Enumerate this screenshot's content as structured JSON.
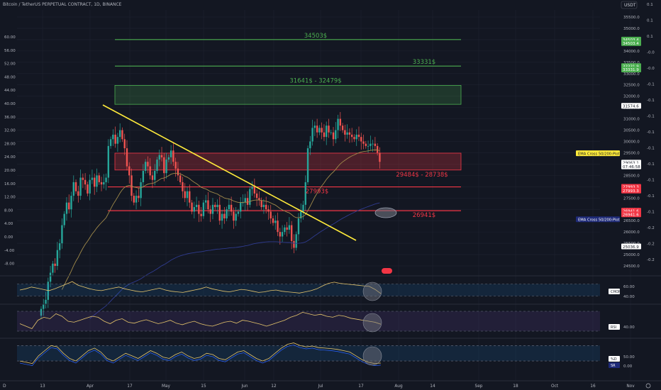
{
  "title": "Bitcoin / TetherUS PERPETUAL CONTRACT, 1D, BINANCE",
  "currency": "USDT",
  "colors": {
    "background": "#131722",
    "grid": "#1f2330",
    "bull": "#26a69a",
    "bear": "#ef5350",
    "green_level": "#4caf50",
    "red_level": "#f23645",
    "trendline": "#ffeb3b",
    "ema50": "#a08a4a",
    "ema200": "#2f3b8f"
  },
  "chart_data": [
    {
      "type": "candlestick",
      "name": "price",
      "title": "Bitcoin / TetherUS PERPETUAL CONTRACT, 1D, BINANCE",
      "price_axis": {
        "min": 24500,
        "max": 35500,
        "ticks": [
          35500,
          35000,
          34500,
          34000,
          33500,
          33000,
          32500,
          32000,
          31500,
          31000,
          30500,
          30000,
          29500,
          29000,
          28500,
          28000,
          27500,
          27000,
          26500,
          26000,
          25500,
          25000,
          24500
        ]
      },
      "left_axis": {
        "ticks": [
          "60.00",
          "56.00",
          "52.00",
          "48.00",
          "44.00",
          "40.00",
          "36.00",
          "32.00",
          "28.00",
          "24.00",
          "20.00",
          "16.00",
          "12.00",
          "8.00",
          "4.00",
          "0.00",
          "-4.00",
          "-8.00"
        ]
      },
      "right_osc_axis": {
        "ticks": [
          "0.1",
          "0.1",
          "0.1",
          "-0.0",
          "-0.0",
          "-0.1",
          "-0.1",
          "-0.1",
          "-0.1",
          "-0.1",
          "-0.1",
          "-0.1",
          "-0.1",
          "-0.1",
          "-0.2",
          "-0.2",
          "-0.2"
        ]
      },
      "x_axis": {
        "labels": [
          "13",
          "Apr",
          "17",
          "May",
          "15",
          "Jun",
          "12",
          "Jul",
          "17",
          "Aug",
          "14",
          "Sep",
          "18",
          "Oct",
          "16",
          "Nov"
        ]
      },
      "series_close": [
        22600,
        22800,
        23000,
        23800,
        24200,
        24600,
        24500,
        25200,
        25500,
        26300,
        26800,
        27300,
        27000,
        27600,
        28200,
        27800,
        27600,
        28400,
        28300,
        28100,
        27700,
        28300,
        28400,
        28000,
        28500,
        28200,
        28100,
        28200,
        28400,
        29800,
        30100,
        30300,
        29900,
        30200,
        30500,
        30100,
        29700,
        28900,
        28500,
        27600,
        27300,
        27600,
        27500,
        28200,
        28700,
        29100,
        28900,
        28500,
        28300,
        28700,
        29200,
        29400,
        29300,
        28600,
        29200,
        29300,
        29600,
        29100,
        28800,
        28500,
        28200,
        27800,
        27500,
        27800,
        27300,
        26900,
        27100,
        27200,
        26800,
        26700,
        27300,
        27400,
        27000,
        26800,
        27200,
        27100,
        27200,
        26500,
        26800,
        26600,
        27000,
        27200,
        26900,
        26500,
        26800,
        26900,
        27300,
        27300,
        27500,
        27200,
        27900,
        28000,
        27700,
        27500,
        27400,
        27100,
        27200,
        27000,
        26900,
        26600,
        26400,
        26500,
        26000,
        25800,
        26000,
        26200,
        26100,
        26300,
        25600,
        25300,
        25900,
        26600,
        26900,
        27200,
        28200,
        29700,
        30000,
        30600,
        30700,
        30400,
        30600,
        30400,
        30200,
        30700,
        30400,
        30400,
        30100,
        30500,
        31000,
        30700,
        30500,
        30300,
        30400,
        30300,
        30200,
        30100,
        30300,
        30200,
        30000,
        29900,
        29800,
        29800,
        29900,
        29900,
        29800,
        29500,
        29100
      ],
      "levels": [
        {
          "label": "34503$",
          "price": 34503,
          "color": "green"
        },
        {
          "label": "33331$",
          "price": 33331,
          "color": "green"
        },
        {
          "label": "31641$ - 32479$",
          "low": 31641,
          "high": 32479,
          "color": "green",
          "kind": "zone"
        },
        {
          "label": "29484$ - 28738$",
          "low": 28738,
          "high": 29484,
          "color": "red",
          "kind": "zone"
        },
        {
          "label": "27993$",
          "price": 27993,
          "color": "red"
        },
        {
          "label": "26941$",
          "price": 26941,
          "color": "red"
        }
      ],
      "right_tags": [
        {
          "label": "34503.4",
          "price": 34503,
          "bg": "#4caf50"
        },
        {
          "label": "34503.4",
          "price": 34350,
          "bg": "#4caf50"
        },
        {
          "label": "33331.9",
          "price": 33331,
          "bg": "#4caf50"
        },
        {
          "label": "33331.9",
          "price": 33180,
          "bg": "#4caf50"
        },
        {
          "label": "31574.6",
          "price": 31574,
          "bg": "#ffffff"
        },
        {
          "label": "29063.1",
          "price": 29063,
          "bg": "#ffffff"
        },
        {
          "label": "07:46:58",
          "price": 28900,
          "bg": "#ffffff"
        },
        {
          "label": "27993.3",
          "price": 27993,
          "bg": "#f23645"
        },
        {
          "label": "27993.3",
          "price": 27830,
          "bg": "#f23645"
        },
        {
          "label": "26941.6",
          "price": 26941,
          "bg": "#f23645"
        },
        {
          "label": "26941.6",
          "price": 26780,
          "bg": "#f23645"
        },
        {
          "label": "25036.9",
          "price": 25360,
          "bg": "#ffffff"
        }
      ],
      "indicator_tags": [
        {
          "label": "EMA Cross 50/200:Plot",
          "price": 29480,
          "style": "yellow"
        },
        {
          "label": "EMA Cross 50/200:Plot",
          "price": 26560,
          "style": "blue"
        }
      ]
    },
    {
      "type": "line",
      "name": "CHOP",
      "axis_ticks": [
        "60.00",
        "40.00"
      ],
      "ylim": [
        30,
        70
      ],
      "values": [
        50,
        52,
        55,
        53,
        51,
        49,
        52,
        56,
        60,
        64,
        58,
        55,
        52,
        50,
        49,
        51,
        53,
        55,
        52,
        50,
        48,
        47,
        49,
        51,
        53,
        50,
        48,
        47,
        46,
        48,
        50,
        52,
        55,
        52,
        50,
        48,
        47,
        49,
        51,
        50,
        48,
        46,
        47,
        49,
        50,
        48,
        47,
        46,
        45,
        47,
        49,
        52,
        57,
        61,
        63,
        61,
        60,
        59,
        58,
        57,
        56,
        51,
        44
      ]
    },
    {
      "type": "line",
      "name": "RSI",
      "axis_ticks": [
        "40.00"
      ],
      "ylim": [
        20,
        80
      ],
      "values": [
        45,
        40,
        35,
        52,
        58,
        55,
        65,
        60,
        50,
        48,
        52,
        56,
        60,
        58,
        50,
        45,
        52,
        55,
        48,
        46,
        50,
        53,
        49,
        45,
        48,
        52,
        46,
        43,
        47,
        50,
        45,
        42,
        40,
        44,
        48,
        50,
        46,
        52,
        50,
        47,
        44,
        40,
        44,
        48,
        52,
        58,
        62,
        68,
        65,
        62,
        64,
        60,
        58,
        62,
        60,
        56,
        54,
        52,
        50,
        48,
        44
      ]
    },
    {
      "type": "line",
      "name": "%D / SR",
      "axis_ticks": [
        "50.00",
        "0.00"
      ],
      "ylim": [
        -10,
        100
      ],
      "series": [
        {
          "name": "%D",
          "values": [
            20,
            15,
            10,
            40,
            60,
            80,
            75,
            50,
            30,
            20,
            40,
            60,
            70,
            55,
            30,
            20,
            35,
            50,
            40,
            30,
            45,
            60,
            50,
            35,
            30,
            45,
            55,
            40,
            30,
            35,
            50,
            45,
            30,
            25,
            40,
            55,
            60,
            45,
            30,
            20,
            30,
            50,
            70,
            85,
            90,
            80,
            75,
            78,
            72,
            70,
            68,
            65,
            60,
            55,
            40,
            25,
            15,
            10,
            12
          ]
        }
      ]
    }
  ]
}
